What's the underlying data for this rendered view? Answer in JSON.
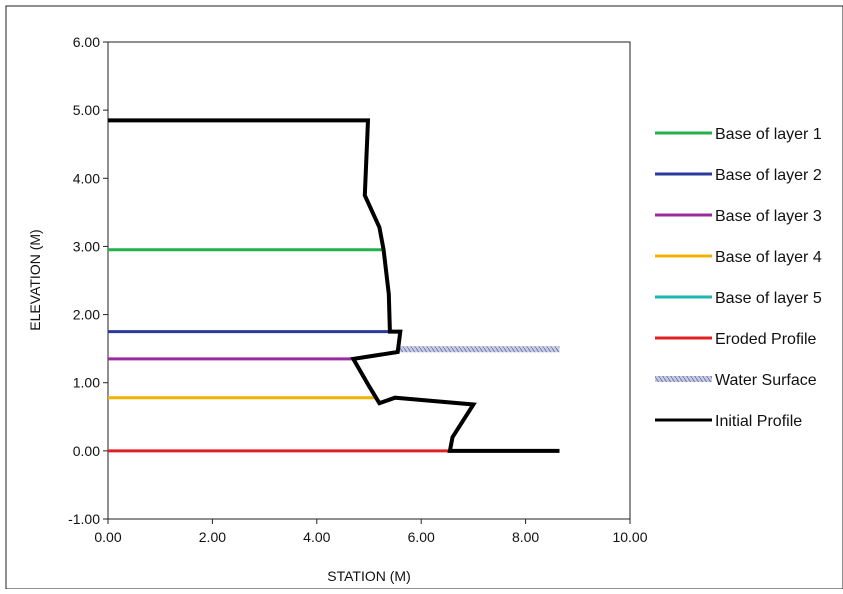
{
  "chart_data": {
    "type": "line",
    "xlabel": "STATION (M)",
    "ylabel": "ELEVATION (M)",
    "xlim": [
      0,
      10
    ],
    "ylim": [
      -1,
      6
    ],
    "x_ticks": [
      "0.00",
      "2.00",
      "4.00",
      "6.00",
      "8.00",
      "10.00"
    ],
    "y_ticks": [
      "-1.00",
      "0.00",
      "1.00",
      "2.00",
      "3.00",
      "4.00",
      "5.00",
      "6.00"
    ],
    "grid": false,
    "legend_position": "right",
    "series": [
      {
        "name": "Base of layer 1",
        "color": "#22b14c",
        "style": "solid",
        "x": [
          0,
          5.25
        ],
        "y": [
          2.95,
          2.95
        ]
      },
      {
        "name": "Base of layer 2",
        "color": "#2b3a9c",
        "style": "solid",
        "x": [
          0,
          5.4
        ],
        "y": [
          1.75,
          1.75
        ]
      },
      {
        "name": "Base of layer 3",
        "color": "#9b2a9e",
        "style": "solid",
        "x": [
          0,
          4.7
        ],
        "y": [
          1.35,
          1.35
        ]
      },
      {
        "name": "Base of layer 4",
        "color": "#f0b400",
        "style": "solid",
        "x": [
          0,
          5.15
        ],
        "y": [
          0.78,
          0.78
        ]
      },
      {
        "name": "Base of layer 5",
        "color": "#1fb5b0",
        "style": "solid",
        "x": [],
        "y": []
      },
      {
        "name": "Eroded Profile",
        "color": "#e02020",
        "style": "solid",
        "x": [
          0,
          6.55
        ],
        "y": [
          0,
          0
        ]
      },
      {
        "name": "Water Surface",
        "color": "#9aa0c8",
        "style": "hatched",
        "x": [
          5.55,
          8.65
        ],
        "y": [
          1.49,
          1.49
        ]
      },
      {
        "name": "Initial Profile",
        "color": "#000000",
        "style": "solid",
        "x": [
          0,
          4.98,
          4.92,
          5.2,
          5.28,
          5.38,
          5.4,
          5.6,
          5.55,
          4.7,
          5.0,
          5.2,
          5.5,
          5.65,
          7.0,
          6.6,
          6.55,
          8.65
        ],
        "y": [
          4.85,
          4.85,
          3.75,
          3.28,
          2.95,
          2.3,
          1.75,
          1.75,
          1.45,
          1.35,
          0.95,
          0.7,
          0.78,
          0.77,
          0.68,
          0.2,
          0.0,
          0.0
        ]
      }
    ]
  }
}
